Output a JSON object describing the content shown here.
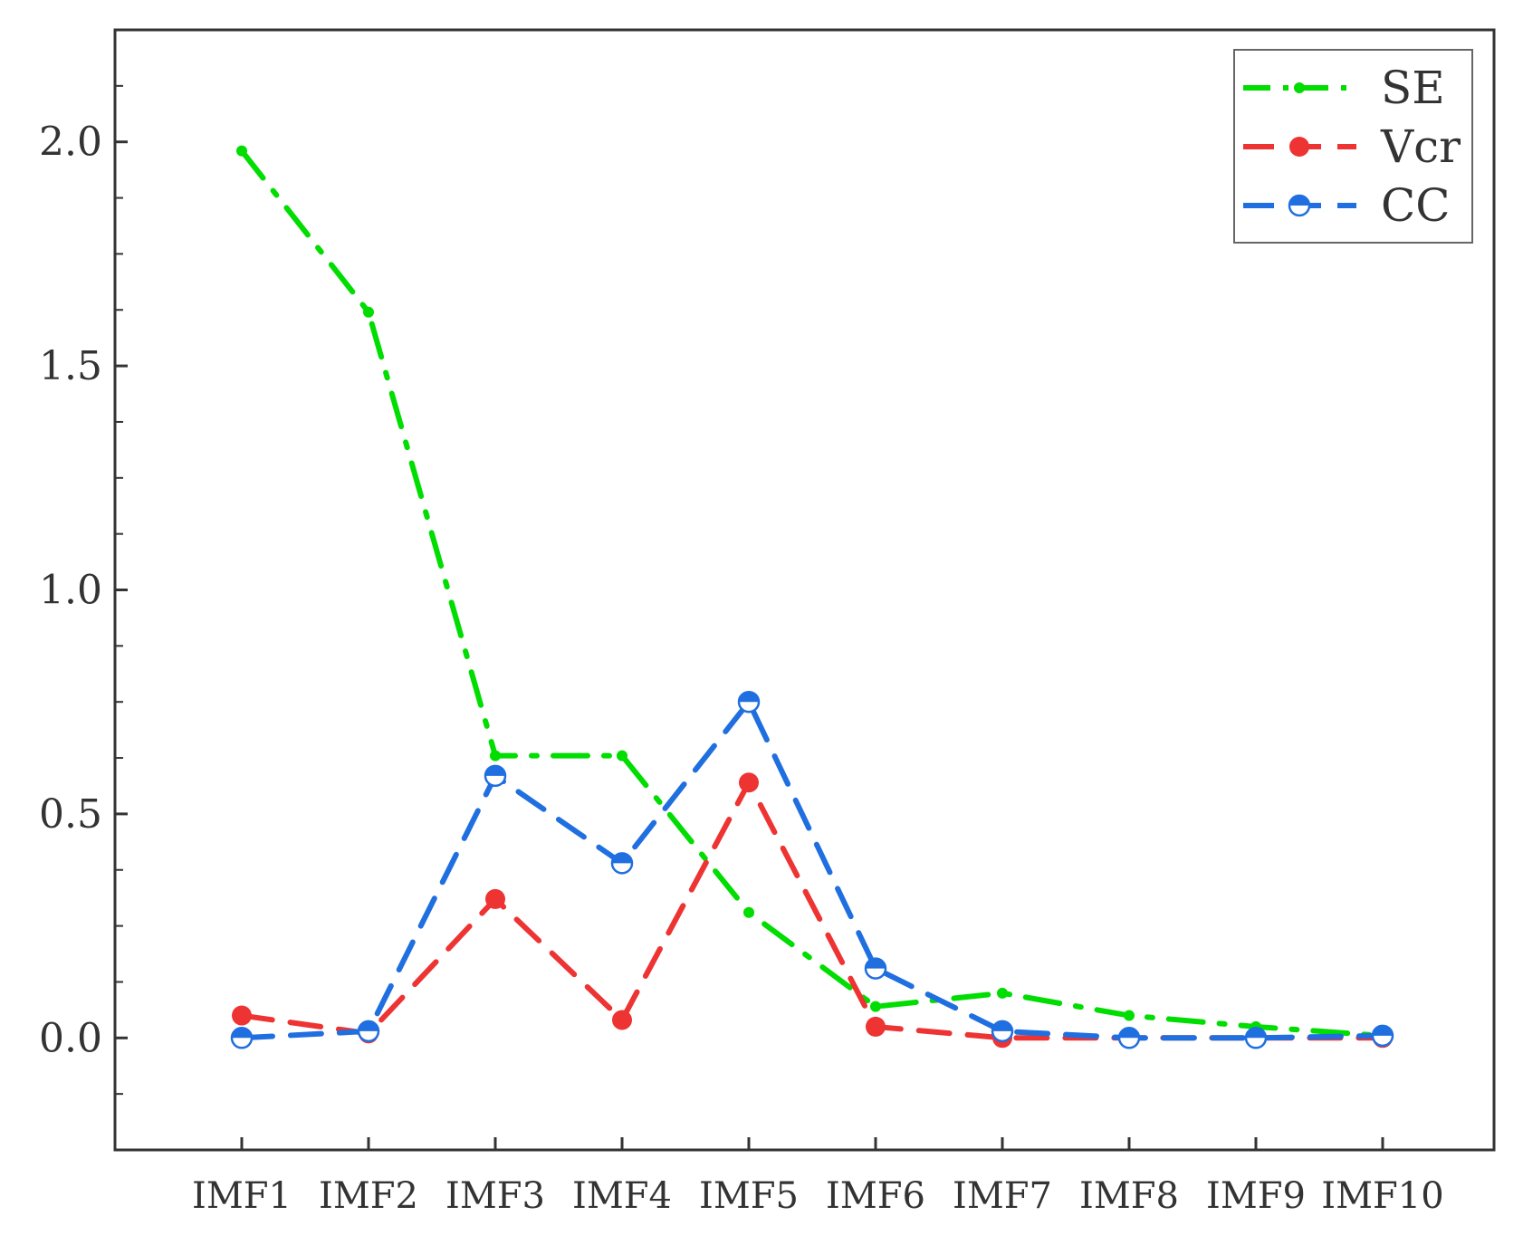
{
  "chart_data": {
    "type": "line",
    "title": "",
    "xlabel": "",
    "ylabel": "",
    "categories": [
      "IMF1",
      "IMF2",
      "IMF3",
      "IMF4",
      "IMF5",
      "IMF6",
      "IMF7",
      "IMF8",
      "IMF9",
      "IMF10"
    ],
    "ylim": [
      -0.25,
      2.25
    ],
    "yticks": [
      0.0,
      0.5,
      1.0,
      1.5,
      2.0
    ],
    "ytick_labels": [
      "0.0",
      "0.5",
      "1.0",
      "1.5",
      "2.0"
    ],
    "grid": false,
    "legend_position": "top-right",
    "series": [
      {
        "name": "SE",
        "color": "#00dd00",
        "marker": "small-dot",
        "line_style": "dash-dot",
        "values": [
          1.98,
          1.62,
          0.63,
          0.63,
          0.28,
          0.07,
          0.1,
          0.05,
          0.025,
          0.005
        ]
      },
      {
        "name": "Vcr",
        "color": "#ee3333",
        "marker": "filled-circle",
        "line_style": "dashed",
        "values": [
          0.05,
          0.01,
          0.31,
          0.04,
          0.57,
          0.025,
          0.0,
          0.0,
          0.0,
          0.0
        ]
      },
      {
        "name": "CC",
        "color": "#1f6fe0",
        "marker": "half-filled-circle",
        "line_style": "dashed",
        "values": [
          0.0,
          0.015,
          0.585,
          0.39,
          0.75,
          0.155,
          0.015,
          0.0,
          0.0,
          0.005
        ]
      }
    ]
  }
}
